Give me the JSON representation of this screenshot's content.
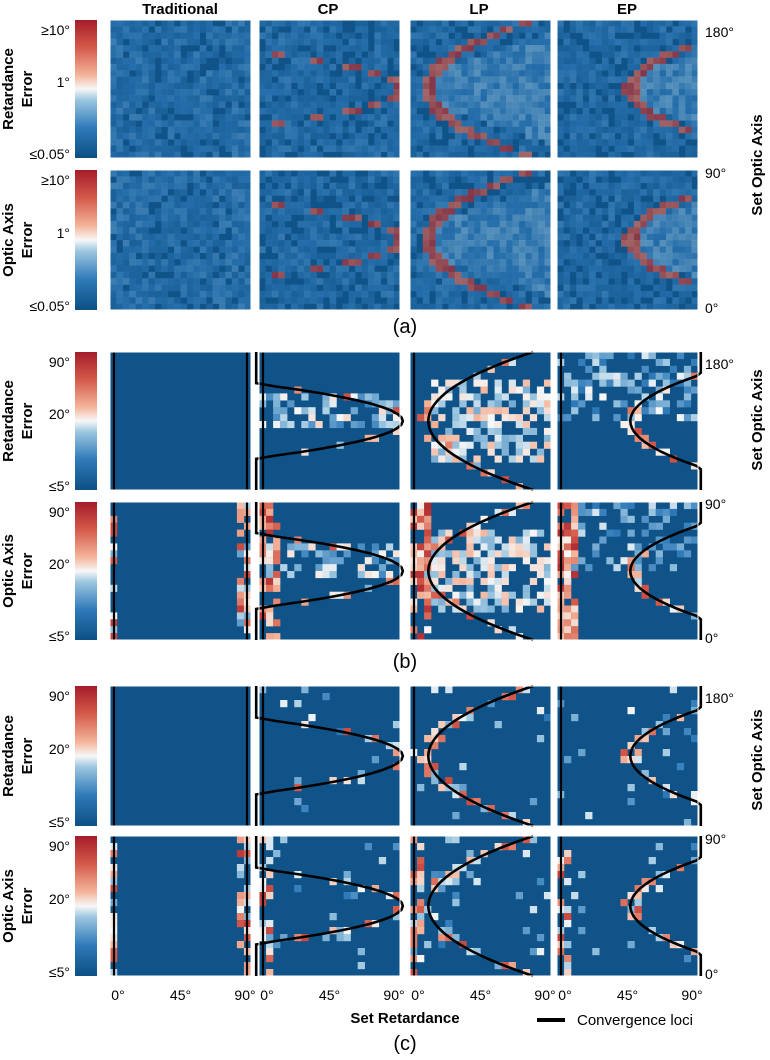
{
  "column_titles": [
    "Traditional",
    "CP",
    "LP",
    "EP"
  ],
  "rows": [
    {
      "ylabel": [
        "Retardance",
        "Error"
      ],
      "cbar_ticks": [
        "≥10°",
        "1°",
        "≤0.05°"
      ]
    },
    {
      "ylabel": [
        "Optic Axis",
        "Error"
      ],
      "cbar_ticks": [
        "≥10°",
        "1°",
        "≤0.05°"
      ]
    },
    {
      "ylabel": [
        "Retardance",
        "Error"
      ],
      "cbar_ticks": [
        "90°",
        "20°",
        "≤5°"
      ]
    },
    {
      "ylabel": [
        "Optic Axis",
        "Error"
      ],
      "cbar_ticks": [
        "90°",
        "20°",
        "≤5°"
      ]
    },
    {
      "ylabel": [
        "Retardance",
        "Error"
      ],
      "cbar_ticks": [
        "90°",
        "20°",
        "≤5°"
      ]
    },
    {
      "ylabel": [
        "Optic Axis",
        "Error"
      ],
      "cbar_ticks": [
        "90°",
        "20°",
        "≤5°"
      ]
    }
  ],
  "right_ticks": [
    "180°",
    "90°",
    "0°"
  ],
  "right_axis_label": "Set Optic Axis",
  "panel_labels": [
    "(a)",
    "(b)",
    "(c)"
  ],
  "x_ticks": [
    "0°",
    "45°",
    "90°"
  ],
  "x_axis_label": "Set Retardance",
  "legend_label": "Convergence loci",
  "colors": {
    "low": "#0c4f83",
    "mid": "#f7f7f7",
    "high": "#a51c2a",
    "curve": "#000000"
  },
  "chart_data": {
    "type": "heatmap",
    "subfigures": [
      {
        "panel": "(a)",
        "rows": [
          "Retardance Error",
          "Optic Axis Error"
        ],
        "columns": [
          "Traditional",
          "CP",
          "LP",
          "EP"
        ],
        "colorscale": "log",
        "color_range": [
          "≤0.05°",
          "≥10°"
        ],
        "style": "noise"
      },
      {
        "panel": "(b)",
        "rows": [
          "Retardance Error",
          "Optic Axis Error"
        ],
        "columns": [
          "Traditional",
          "CP",
          "LP",
          "EP"
        ],
        "color_range": [
          "≤5°",
          "90°"
        ],
        "style": "cells"
      },
      {
        "panel": "(c)",
        "rows": [
          "Retardance Error",
          "Optic Axis Error"
        ],
        "columns": [
          "Traditional",
          "CP",
          "LP",
          "EP"
        ],
        "color_range": [
          "≤5°",
          "90°"
        ],
        "style": "cells"
      }
    ],
    "xlabel": "Set Retardance",
    "ylabel": "Set Optic Axis",
    "xlim": [
      0,
      90
    ],
    "ylim": [
      0,
      180
    ],
    "legend": "bottom-right"
  }
}
